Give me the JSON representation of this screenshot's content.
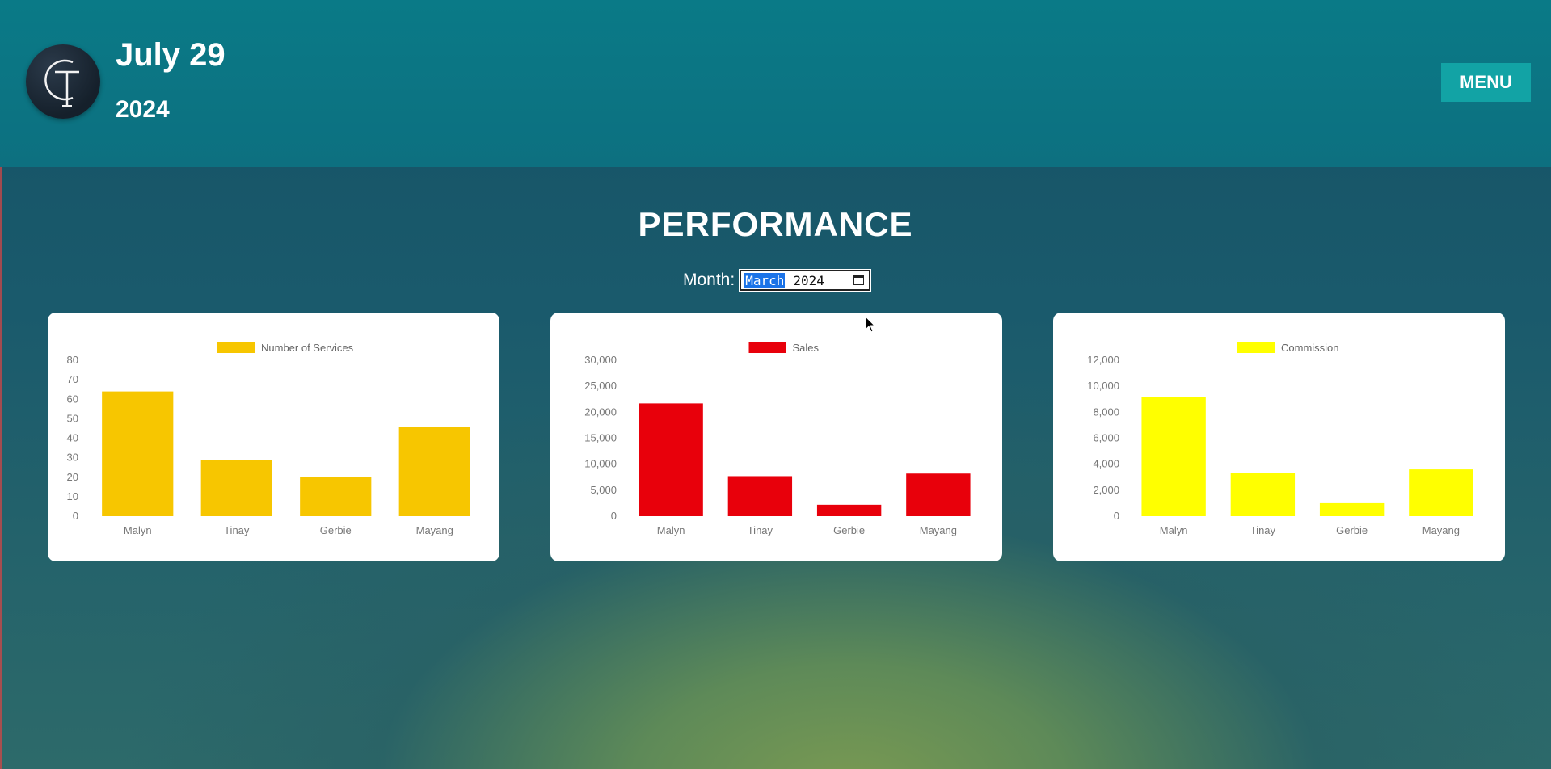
{
  "header": {
    "date_day": "July 29",
    "date_year": "2024",
    "menu_label": "MENU",
    "logo_letters": "CT"
  },
  "page": {
    "title": "PERFORMANCE",
    "month_label": "Month:",
    "month_value": "March",
    "month_year": "2024"
  },
  "colors": {
    "services": "#f7c600",
    "sales": "#e8000b",
    "commission": "#ffff00",
    "header_bg": "#0a7a87",
    "menu_bg": "#12a3a5"
  },
  "chart_data": [
    {
      "type": "bar",
      "categories": [
        "Malyn",
        "Tinay",
        "Gerbie",
        "Mayang"
      ],
      "series": [
        {
          "name": "Number of Services",
          "values": [
            64,
            29,
            20,
            46
          ]
        }
      ],
      "yticks": [
        "0",
        "10",
        "20",
        "30",
        "40",
        "50",
        "60",
        "70",
        "80"
      ],
      "ylim": [
        0,
        80
      ],
      "legend": "top"
    },
    {
      "type": "bar",
      "categories": [
        "Malyn",
        "Tinay",
        "Gerbie",
        "Mayang"
      ],
      "series": [
        {
          "name": "Sales",
          "values": [
            21700,
            7700,
            2200,
            8200
          ]
        }
      ],
      "yticks": [
        "0",
        "5,000",
        "10,000",
        "15,000",
        "20,000",
        "25,000",
        "30,000"
      ],
      "ylim": [
        0,
        30000
      ],
      "legend": "top"
    },
    {
      "type": "bar",
      "categories": [
        "Malyn",
        "Tinay",
        "Gerbie",
        "Mayang"
      ],
      "series": [
        {
          "name": "Commission",
          "values": [
            9200,
            3300,
            1000,
            3600
          ]
        }
      ],
      "yticks": [
        "0",
        "2,000",
        "4,000",
        "6,000",
        "8,000",
        "10,000",
        "12,000"
      ],
      "ylim": [
        0,
        12000
      ],
      "legend": "top"
    }
  ]
}
